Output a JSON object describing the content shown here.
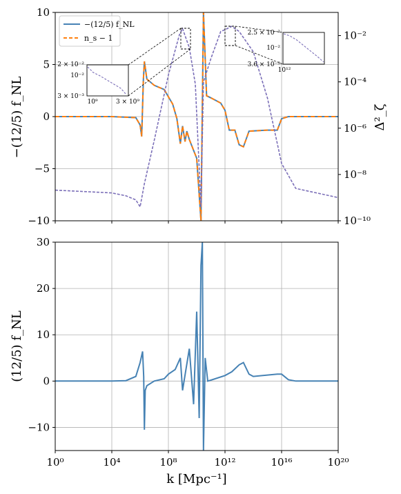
{
  "chart_data": [
    {
      "type": "line",
      "x_scale": "log",
      "xlim": [
        1,
        1e+20
      ],
      "ylim": [
        -10,
        10
      ],
      "y2lim": [
        1e-10,
        0.1
      ],
      "y2_scale": "log",
      "grid": true,
      "legend_position": "top-left",
      "ylabel": "−(12/5) f_NL",
      "y2label": "Δ²_ζ",
      "yticks": [
        "−10",
        "−5",
        "0",
        "5",
        "10"
      ],
      "y2ticks": [
        "10⁻¹⁰",
        "10⁻⁸",
        "10⁻⁶",
        "10⁻⁴",
        "10⁻²"
      ],
      "legend": [
        "−(12/5) f_NL",
        "n_s − 1"
      ],
      "series": [
        {
          "name": "−(12/5) f_NL",
          "style": "solid",
          "color": "#4682b4",
          "points": [
            [
              1,
              0
            ],
            [
              10000.0,
              0
            ],
            [
              500000.0,
              -0.1
            ],
            [
              1000000.0,
              -0.8
            ],
            [
              1300000.0,
              -1.9
            ],
            [
              1700000.0,
              3.5
            ],
            [
              2000000.0,
              5.3
            ],
            [
              3000000.0,
              3.6
            ],
            [
              10000000.0,
              3.0
            ],
            [
              50000000.0,
              2.6
            ],
            [
              200000000.0,
              1.2
            ],
            [
              400000000.0,
              -0.2
            ],
            [
              700000000.0,
              -2.6
            ],
            [
              1000000000.0,
              -0.9
            ],
            [
              1500000000.0,
              -2.4
            ],
            [
              2000000000.0,
              -1.4
            ],
            [
              3000000000.0,
              -2.2
            ],
            [
              10000000000.0,
              -4
            ],
            [
              20000000000.0,
              -10
            ],
            [
              30000000000.0,
              10
            ],
            [
              50000000000.0,
              2
            ],
            [
              100000000000.0,
              1.8
            ],
            [
              500000000000.0,
              1.3
            ],
            [
              1000000000000.0,
              0.6
            ],
            [
              2000000000000.0,
              -1.3
            ],
            [
              5000000000000.0,
              -1.3
            ],
            [
              10000000000000.0,
              -2.7
            ],
            [
              20000000000000.0,
              -2.9
            ],
            [
              50000000000000.0,
              -1.4
            ],
            [
              1000000000000000.0,
              -1.3
            ],
            [
              5000000000000000.0,
              -1.3
            ],
            [
              1e+16,
              -0.2
            ],
            [
              3e+16,
              0
            ],
            [
              1e+20,
              0
            ]
          ]
        },
        {
          "name": "n_s − 1",
          "style": "dashed",
          "color": "#ff7f0e",
          "points": [
            [
              1,
              0
            ],
            [
              10000.0,
              0
            ],
            [
              500000.0,
              -0.1
            ],
            [
              1000000.0,
              -0.8
            ],
            [
              1300000.0,
              -1.9
            ],
            [
              1700000.0,
              3.5
            ],
            [
              2000000.0,
              5.3
            ],
            [
              3000000.0,
              3.6
            ],
            [
              10000000.0,
              3.0
            ],
            [
              50000000.0,
              2.6
            ],
            [
              200000000.0,
              1.2
            ],
            [
              400000000.0,
              -0.2
            ],
            [
              700000000.0,
              -2.6
            ],
            [
              1000000000.0,
              -0.9
            ],
            [
              1500000000.0,
              -2.4
            ],
            [
              2000000000.0,
              -1.4
            ],
            [
              3000000000.0,
              -2.2
            ],
            [
              10000000000.0,
              -4
            ],
            [
              20000000000.0,
              -10
            ],
            [
              30000000000.0,
              10
            ],
            [
              50000000000.0,
              2
            ],
            [
              100000000000.0,
              1.8
            ],
            [
              500000000000.0,
              1.3
            ],
            [
              1000000000000.0,
              0.6
            ],
            [
              2000000000000.0,
              -1.3
            ],
            [
              5000000000000.0,
              -1.3
            ],
            [
              10000000000000.0,
              -2.7
            ],
            [
              20000000000000.0,
              -2.9
            ],
            [
              50000000000000.0,
              -1.4
            ],
            [
              1000000000000000.0,
              -1.3
            ],
            [
              5000000000000000.0,
              -1.3
            ],
            [
              1e+16,
              -0.2
            ],
            [
              3e+16,
              0
            ],
            [
              1e+20,
              0
            ]
          ]
        },
        {
          "name": "Δ²_ζ",
          "axis": "right",
          "style": "dashed",
          "color": "#7b6fb8",
          "points": [
            [
              1,
              2.1e-09
            ],
            [
              10000.0,
              1.6e-09
            ],
            [
              100000.0,
              1.2e-09
            ],
            [
              500000.0,
              8e-10
            ],
            [
              1000000.0,
              4e-10
            ],
            [
              2000000.0,
              4e-09
            ],
            [
              10000000.0,
              3e-07
            ],
            [
              100000000.0,
              0.0002
            ],
            [
              600000000.0,
              0.011
            ],
            [
              1000000000.0,
              0.02
            ],
            [
              3000000000.0,
              0.003
            ],
            [
              8000000000.0,
              8e-05
            ],
            [
              20000000000.0,
              4e-10
            ],
            [
              30000000000.0,
              0.0001
            ],
            [
              100000000000.0,
              0.001
            ],
            [
              500000000000.0,
              0.015
            ],
            [
              1000000000000.0,
              0.018
            ],
            [
              3000000000000.0,
              0.025
            ],
            [
              10000000000000.0,
              0.015
            ],
            [
              100000000000000.0,
              0.002
            ],
            [
              1000000000000000.0,
              2e-05
            ],
            [
              1e+16,
              3e-08
            ],
            [
              1e+17,
              2.5e-09
            ],
            [
              1e+20,
              1e-09
            ]
          ]
        }
      ],
      "insets": [
        {
          "xticks": [
            "10⁹",
            "3 × 10⁹"
          ],
          "yticks": [
            "2 × 10⁻²",
            "10⁻²",
            "3 × 10⁻³"
          ]
        },
        {
          "xticks": [
            "10¹²"
          ],
          "yticks": [
            "2.5 × 10⁻²",
            "10⁻²",
            "3.6 × 10⁻³"
          ]
        }
      ]
    },
    {
      "type": "line",
      "x_scale": "log",
      "xlim": [
        1,
        1e+20
      ],
      "ylim": [
        -15,
        30
      ],
      "grid": true,
      "xlabel": "k [Mpc⁻¹]",
      "ylabel": "(12/5) f_NL",
      "xticks": [
        "10⁰",
        "10⁴",
        "10⁸",
        "10¹²",
        "10¹⁶",
        "10²⁰"
      ],
      "yticks": [
        "−10",
        "0",
        "10",
        "20",
        "30"
      ],
      "series": [
        {
          "style": "solid",
          "color": "#4682b4",
          "points": [
            [
              1,
              0
            ],
            [
              10000.0,
              0
            ],
            [
              100000.0,
              0.1
            ],
            [
              500000.0,
              1
            ],
            [
              1000000.0,
              4
            ],
            [
              1500000.0,
              6.4
            ],
            [
              1800000.0,
              1
            ],
            [
              2000000.0,
              -10.5
            ],
            [
              2300000.0,
              -2
            ],
            [
              3000000.0,
              -1
            ],
            [
              10000000.0,
              0
            ],
            [
              50000000.0,
              0.5
            ],
            [
              100000000.0,
              1.5
            ],
            [
              300000000.0,
              2.5
            ],
            [
              700000000.0,
              5
            ],
            [
              1000000000.0,
              -2
            ],
            [
              3000000000.0,
              7
            ],
            [
              6000000000.0,
              -5
            ],
            [
              10000000000.0,
              15
            ],
            [
              15000000000.0,
              -8
            ],
            [
              20000000000.0,
              25
            ],
            [
              25000000000.0,
              30
            ],
            [
              30000000000.0,
              -15
            ],
            [
              40000000000.0,
              5
            ],
            [
              60000000000.0,
              0
            ],
            [
              100000000000.0,
              0.2
            ],
            [
              1000000000000.0,
              1.2
            ],
            [
              3000000000000.0,
              2
            ],
            [
              10000000000000.0,
              3.5
            ],
            [
              20000000000000.0,
              4
            ],
            [
              50000000000000.0,
              1.5
            ],
            [
              100000000000000.0,
              1
            ],
            [
              1000000000000000.0,
              1.3
            ],
            [
              5000000000000000.0,
              1.5
            ],
            [
              1e+16,
              1.5
            ],
            [
              3e+16,
              0.3
            ],
            [
              1e+17,
              0
            ],
            [
              1e+20,
              0
            ]
          ]
        }
      ]
    }
  ]
}
